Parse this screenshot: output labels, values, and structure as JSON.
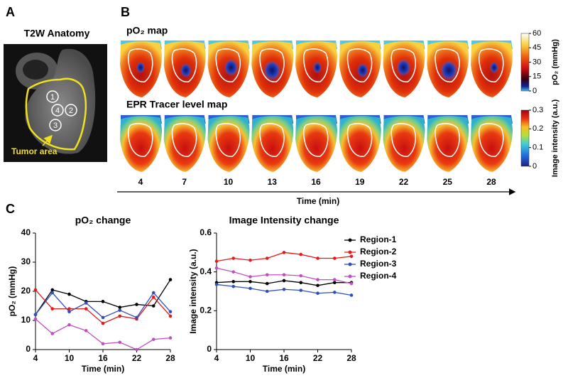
{
  "panel_labels": [
    "A",
    "B",
    "C"
  ],
  "anatomy": {
    "title": "T2W Anatomy",
    "markers": [
      "1",
      "4",
      "2",
      "3"
    ],
    "annotation": "Tumor area"
  },
  "maps": {
    "rows": [
      {
        "title": "pO₂ map",
        "colorbar": {
          "label": "pO₂ (mmHg)",
          "lim": [
            0,
            60
          ],
          "ticks": [
            0,
            15,
            30,
            45,
            60
          ]
        }
      },
      {
        "title": "EPR Tracer level map",
        "colorbar": {
          "label": "Image intensity (a.u.)",
          "lim": [
            0,
            0.3
          ],
          "ticks": [
            0,
            0.1,
            0.2,
            0.3
          ]
        }
      }
    ],
    "time_ticks": [
      4,
      7,
      10,
      13,
      16,
      19,
      22,
      25,
      28
    ],
    "time_label": "Time (min)"
  },
  "chart_data": [
    {
      "type": "line",
      "title": "pO₂ change",
      "xlabel": "Time (min)",
      "ylabel": "pO₂ (mmHg)",
      "x": [
        4,
        7,
        10,
        13,
        16,
        19,
        22,
        25,
        28
      ],
      "xlim": [
        4,
        28
      ],
      "xticks": [
        4,
        10,
        16,
        22,
        28
      ],
      "ylim": [
        0,
        40
      ],
      "yticks": [
        0,
        10,
        20,
        30,
        40
      ],
      "series": [
        {
          "color": "#000000",
          "values": [
            12,
            20.5,
            19,
            16.5,
            16.5,
            14.5,
            15.5,
            15,
            24
          ]
        },
        {
          "color": "#e41a1c",
          "values": [
            20.5,
            14,
            14,
            14,
            9,
            11.5,
            10.5,
            18,
            11.5
          ]
        },
        {
          "color": "#2f4fbf",
          "values": [
            12,
            19.5,
            13,
            16,
            11,
            13.5,
            11,
            19.5,
            13
          ]
        },
        {
          "color": "#c050c0",
          "values": [
            10.5,
            5.5,
            8.5,
            6.5,
            2,
            2.5,
            0,
            3.5,
            4
          ]
        }
      ]
    },
    {
      "type": "line",
      "title": "Image Intensity change",
      "xlabel": "Time (min)",
      "ylabel": "Image intensity (a.u.)",
      "x": [
        4,
        7,
        10,
        13,
        16,
        19,
        22,
        25,
        28
      ],
      "xlim": [
        4,
        28
      ],
      "xticks": [
        4,
        10,
        16,
        22,
        28
      ],
      "ylim": [
        0,
        0.6
      ],
      "yticks": [
        0,
        0.2,
        0.4,
        0.6
      ],
      "legend": "right",
      "series": [
        {
          "name": "Region-1",
          "color": "#000000",
          "values": [
            0.345,
            0.35,
            0.35,
            0.34,
            0.355,
            0.345,
            0.33,
            0.345,
            0.345
          ]
        },
        {
          "name": "Region-2",
          "color": "#e41a1c",
          "values": [
            0.455,
            0.47,
            0.46,
            0.47,
            0.5,
            0.49,
            0.47,
            0.47,
            0.48
          ]
        },
        {
          "name": "Region-3",
          "color": "#2f4fbf",
          "values": [
            0.335,
            0.325,
            0.315,
            0.3,
            0.31,
            0.305,
            0.29,
            0.295,
            0.28
          ]
        },
        {
          "name": "Region-4",
          "color": "#c050c0",
          "values": [
            0.42,
            0.4,
            0.375,
            0.385,
            0.385,
            0.38,
            0.36,
            0.36,
            0.34
          ]
        }
      ]
    }
  ]
}
